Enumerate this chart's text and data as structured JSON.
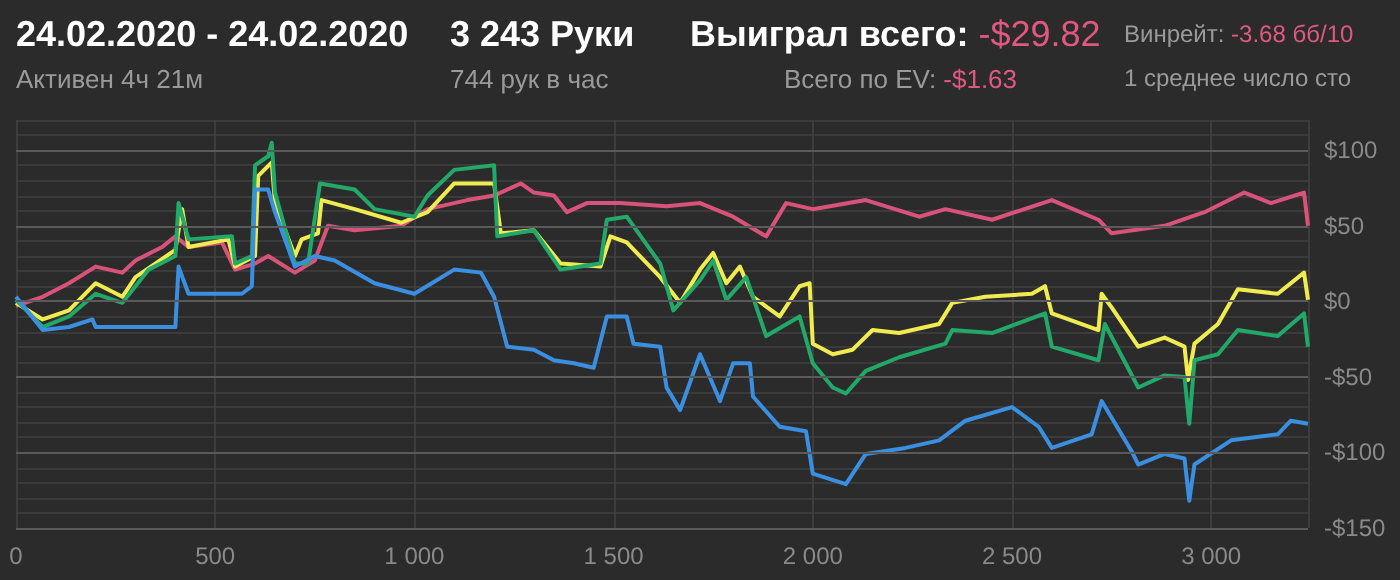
{
  "chart_data": {
    "type": "line",
    "title": "24.02.2020 - 24.02.2020",
    "subtitle": "Активен 4ч 21м",
    "annotations": [
      "3 243 Руки",
      "744 рук в час",
      "Выиграл всего: -$29.82",
      "Всего по EV: -$1.63",
      "Винрейт: -3.68 бб/10",
      "1 среднее число сто"
    ],
    "series": [
      {
        "color": "#d9527a",
        "x": [
          0,
          67,
          133,
          200,
          267,
          300,
          367,
          400,
          433,
          517,
          550,
          600,
          633,
          700,
          750,
          783,
          850,
          967,
          1033,
          1133,
          1200,
          1267,
          1300,
          1350,
          1383,
          1433,
          1517,
          1633,
          1717,
          1800,
          1883,
          1933,
          2000,
          2133,
          2267,
          2333,
          2450,
          2600,
          2717,
          2750,
          2883,
          2983,
          3083,
          3150,
          3233,
          3243
        ],
        "values": [
          -3,
          3,
          12,
          23,
          19,
          27,
          36,
          43,
          36,
          39,
          21,
          25,
          30,
          19,
          27,
          50,
          47,
          50,
          61,
          67,
          70,
          78,
          72,
          70,
          59,
          65,
          65,
          63,
          65,
          56,
          43,
          65,
          61,
          67,
          56,
          61,
          54,
          67,
          54,
          45,
          50,
          59,
          72,
          65,
          72,
          50
        ]
      },
      {
        "color": "#f0ec50",
        "x": [
          0,
          67,
          133,
          200,
          267,
          300,
          400,
          417,
          433,
          533,
          550,
          600,
          608,
          642,
          650,
          700,
          717,
          758,
          767,
          850,
          967,
          1033,
          1100,
          1200,
          1217,
          1300,
          1367,
          1467,
          1492,
          1533,
          1617,
          1667,
          1717,
          1750,
          1783,
          1817,
          1850,
          1917,
          1967,
          1992,
          2000,
          2050,
          2100,
          2150,
          2217,
          2317,
          2350,
          2433,
          2550,
          2583,
          2600,
          2717,
          2725,
          2750,
          2817,
          2883,
          2933,
          2942,
          2958,
          3017,
          3067,
          3167,
          3233,
          3243
        ],
        "values": [
          -1,
          -12,
          -6,
          12,
          3,
          16,
          34,
          61,
          36,
          41,
          23,
          30,
          83,
          92,
          65,
          30,
          41,
          45,
          67,
          61,
          52,
          59,
          78,
          78,
          45,
          47,
          25,
          23,
          43,
          39,
          16,
          -1,
          21,
          32,
          12,
          23,
          3,
          -10,
          10,
          12,
          -28,
          -35,
          -32,
          -19,
          -21,
          -15,
          -1,
          3,
          5,
          10,
          -8,
          -19,
          5,
          -4,
          -30,
          -24,
          -30,
          -52,
          -28,
          -15,
          8,
          5,
          19,
          1
        ]
      },
      {
        "color": "#22a868",
        "x": [
          0,
          67,
          133,
          200,
          267,
          333,
          400,
          408,
          433,
          542,
          550,
          592,
          600,
          633,
          642,
          650,
          700,
          733,
          763,
          850,
          900,
          1000,
          1033,
          1100,
          1200,
          1208,
          1300,
          1367,
          1467,
          1483,
          1533,
          1617,
          1650,
          1717,
          1750,
          1783,
          1833,
          1883,
          1967,
          2000,
          2050,
          2083,
          2133,
          2217,
          2333,
          2350,
          2450,
          2583,
          2600,
          2717,
          2733,
          2817,
          2883,
          2933,
          2945,
          2958,
          3017,
          3067,
          3167,
          3233,
          3243
        ],
        "values": [
          1,
          -17,
          -10,
          5,
          -1,
          21,
          30,
          65,
          41,
          43,
          25,
          30,
          90,
          96,
          105,
          72,
          25,
          25,
          78,
          74,
          61,
          56,
          70,
          87,
          90,
          43,
          47,
          21,
          25,
          54,
          56,
          25,
          -6,
          14,
          27,
          1,
          16,
          -23,
          -10,
          -41,
          -57,
          -61,
          -46,
          -37,
          -28,
          -19,
          -21,
          -8,
          -30,
          -39,
          -15,
          -57,
          -49,
          -50,
          -81,
          -39,
          -35,
          -19,
          -23,
          -8,
          -30
        ]
      },
      {
        "color": "#3a8fe0",
        "x": [
          0,
          67,
          133,
          192,
          200,
          300,
          400,
          408,
          433,
          567,
          592,
          600,
          633,
          650,
          700,
          750,
          800,
          900,
          1000,
          1100,
          1167,
          1200,
          1233,
          1300,
          1350,
          1400,
          1450,
          1483,
          1533,
          1550,
          1617,
          1633,
          1667,
          1717,
          1767,
          1800,
          1842,
          1850,
          1917,
          1983,
          2000,
          2083,
          2133,
          2233,
          2317,
          2383,
          2500,
          2567,
          2600,
          2700,
          2725,
          2800,
          2817,
          2883,
          2933,
          2945,
          2958,
          3050,
          3167,
          3200,
          3243
        ],
        "values": [
          3,
          -19,
          -17,
          -12,
          -17,
          -17,
          -17,
          23,
          5,
          5,
          10,
          74,
          74,
          59,
          23,
          30,
          27,
          12,
          5,
          21,
          19,
          3,
          -30,
          -32,
          -39,
          -41,
          -44,
          -10,
          -10,
          -28,
          -30,
          -57,
          -72,
          -35,
          -66,
          -41,
          -41,
          -63,
          -83,
          -86,
          -114,
          -121,
          -101,
          -97,
          -92,
          -79,
          -70,
          -83,
          -97,
          -88,
          -66,
          -99,
          -108,
          -101,
          -104,
          -132,
          -108,
          -92,
          -88,
          -79,
          -81
        ]
      }
    ],
    "xlim": [
      0,
      3243
    ],
    "xticks": [
      0,
      500,
      {
        "value": 1000,
        "label": "1 000"
      },
      {
        "value": 1500,
        "label": "1 500"
      },
      {
        "value": 2000,
        "label": "2 000"
      },
      {
        "value": 2500,
        "label": "2 500"
      },
      {
        "value": 3000,
        "label": "3 000"
      }
    ],
    "ylim": [
      -150,
      120
    ],
    "yticks": [
      {
        "value": -150,
        "label": "-$150"
      },
      {
        "value": -140,
        "label": null
      },
      {
        "value": -130,
        "label": null
      },
      {
        "value": -120,
        "label": null
      },
      {
        "value": -110,
        "label": null
      },
      {
        "value": -100,
        "label": "-$100"
      },
      {
        "value": -90,
        "label": null
      },
      {
        "value": -80,
        "label": null
      },
      {
        "value": -70,
        "label": null
      },
      {
        "value": -60,
        "label": null
      },
      {
        "value": -50,
        "label": "-$50"
      },
      {
        "value": -40,
        "label": null
      },
      {
        "value": -30,
        "label": null
      },
      {
        "value": -20,
        "label": null
      },
      {
        "value": -10,
        "label": null
      },
      {
        "value": 0,
        "label": "$0"
      },
      {
        "value": 10,
        "label": null
      },
      {
        "value": 20,
        "label": null
      },
      {
        "value": 30,
        "label": null
      },
      {
        "value": 40,
        "label": null
      },
      {
        "value": 50,
        "label": "$50"
      },
      {
        "value": 60,
        "label": null
      },
      {
        "value": 70,
        "label": null
      },
      {
        "value": 80,
        "label": null
      },
      {
        "value": 90,
        "label": null
      },
      {
        "value": 100,
        "label": "$100"
      },
      {
        "value": 110,
        "label": null
      }
    ],
    "grid": true,
    "marker": "none",
    "line_style": "solid"
  }
}
